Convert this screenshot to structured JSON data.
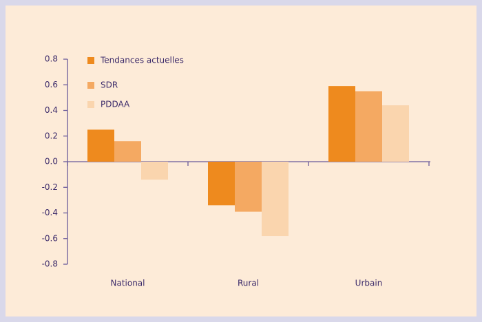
{
  "chart_data": {
    "type": "bar",
    "categories": [
      "National",
      "Rural",
      "Urbain"
    ],
    "series": [
      {
        "name": "Tendances actuelles",
        "color": "#ee8a1e",
        "values": [
          0.25,
          -0.34,
          0.59
        ]
      },
      {
        "name": "SDR",
        "color": "#f4a962",
        "values": [
          0.16,
          -0.39,
          0.55
        ]
      },
      {
        "name": "PDDAA",
        "color": "#fad5ae",
        "values": [
          -0.14,
          -0.58,
          0.44
        ]
      }
    ],
    "ylim": [
      -0.8,
      0.8
    ],
    "yticks": [
      -0.8,
      -0.6,
      -0.4,
      -0.2,
      {
        "value": 0,
        "label": "0.0"
      },
      0.2,
      0.4,
      0.6,
      0.8
    ],
    "legend": "upper left"
  }
}
